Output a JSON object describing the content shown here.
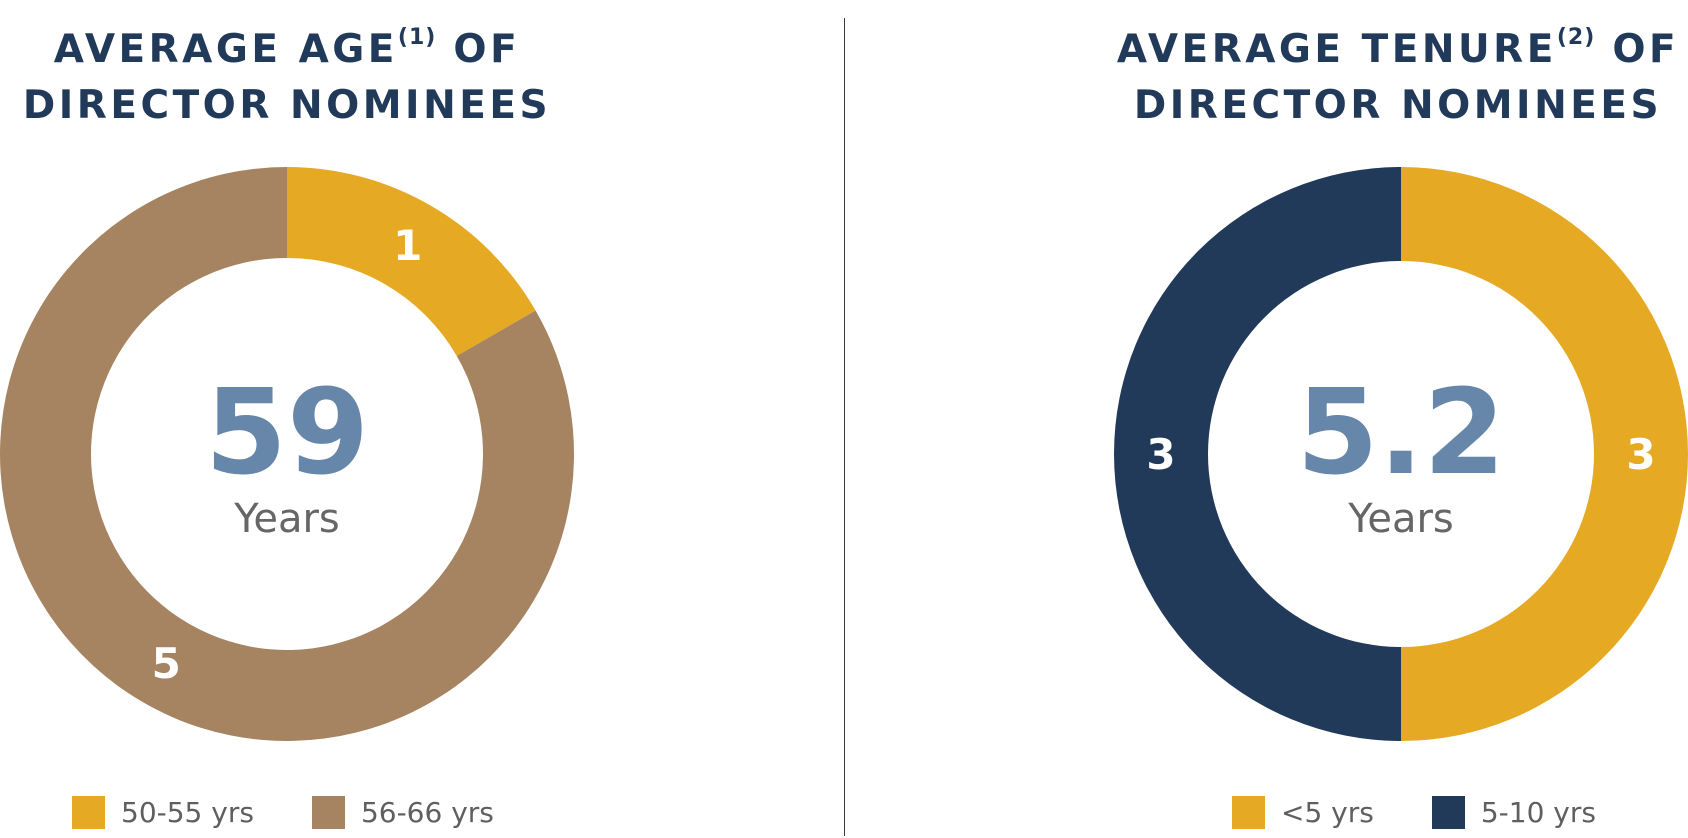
{
  "colors": {
    "navy": "#223a5a",
    "gold": "#e6a923",
    "tan": "#a68462",
    "center_number": "#6686aa",
    "center_label": "#666666"
  },
  "chart_data": [
    {
      "type": "pie",
      "title": "AVERAGE AGE",
      "title_superscript": "(1)",
      "title_suffix": "OF",
      "title_line2": "DIRECTOR NOMINEES",
      "center_value": "59",
      "center_label": "Years",
      "categories": [
        "50-55 yrs",
        "56-66 yrs"
      ],
      "values": [
        1,
        5
      ],
      "data_labels": [
        "1",
        "5"
      ],
      "colors": [
        "#e6a923",
        "#a68462"
      ],
      "legend_position": "bottom"
    },
    {
      "type": "pie",
      "title": "AVERAGE TENURE",
      "title_superscript": "(2)",
      "title_suffix": "OF",
      "title_line2": "DIRECTOR NOMINEES",
      "center_value": "5.2",
      "center_label": "Years",
      "categories": [
        "<5 yrs",
        "5-10 yrs"
      ],
      "values": [
        3,
        3
      ],
      "data_labels": [
        "3",
        "3"
      ],
      "colors": [
        "#e6a923",
        "#223a5a"
      ],
      "legend_position": "bottom"
    }
  ]
}
